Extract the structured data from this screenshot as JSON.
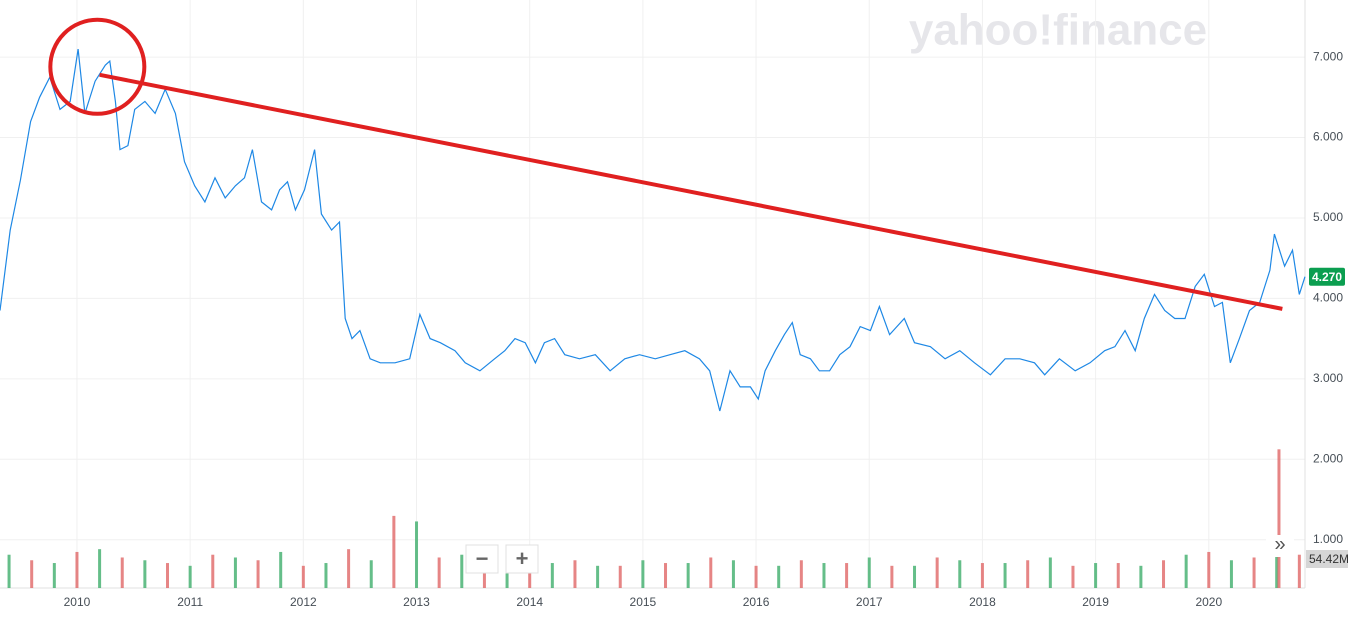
{
  "chart_data": {
    "type": "line",
    "watermark": "yahoo!finance",
    "controls": [
      "−",
      "+",
      "»"
    ],
    "x": [
      2009.32,
      2009.41,
      2009.5,
      2009.59,
      2009.67,
      2009.76,
      2009.85,
      2009.94,
      2010.01,
      2010.07,
      2010.16,
      2010.25,
      2010.29,
      2010.34,
      2010.38,
      2010.45,
      2010.51,
      2010.6,
      2010.69,
      2010.78,
      2010.87,
      2010.95,
      2011.04,
      2011.13,
      2011.22,
      2011.31,
      2011.4,
      2011.48,
      2011.55,
      2011.63,
      2011.72,
      2011.79,
      2011.86,
      2011.93,
      2012.01,
      2012.1,
      2012.16,
      2012.25,
      2012.32,
      2012.37,
      2012.43,
      2012.5,
      2012.59,
      2012.68,
      2012.81,
      2012.94,
      2013.03,
      2013.12,
      2013.21,
      2013.34,
      2013.43,
      2013.56,
      2013.69,
      2013.78,
      2013.87,
      2013.96,
      2014.05,
      2014.13,
      2014.22,
      2014.31,
      2014.44,
      2014.58,
      2014.71,
      2014.84,
      2014.97,
      2015.11,
      2015.24,
      2015.37,
      2015.5,
      2015.59,
      2015.68,
      2015.77,
      2015.86,
      2015.95,
      2016.02,
      2016.08,
      2016.17,
      2016.25,
      2016.32,
      2016.39,
      2016.48,
      2016.56,
      2016.65,
      2016.74,
      2016.83,
      2016.92,
      2017.01,
      2017.09,
      2017.18,
      2017.31,
      2017.4,
      2017.54,
      2017.67,
      2017.8,
      2017.93,
      2018.07,
      2018.2,
      2018.33,
      2018.46,
      2018.55,
      2018.68,
      2018.82,
      2018.95,
      2019.08,
      2019.17,
      2019.26,
      2019.35,
      2019.43,
      2019.52,
      2019.61,
      2019.7,
      2019.79,
      2019.88,
      2019.96,
      2020.05,
      2020.12,
      2020.19,
      2020.27,
      2020.36,
      2020.45,
      2020.54,
      2020.58,
      2020.67,
      2020.74,
      2020.8,
      2020.85
    ],
    "series": [
      {
        "color": "#1e88e5",
        "values": [
          3.85,
          4.85,
          5.47,
          6.2,
          6.5,
          6.75,
          6.35,
          6.45,
          7.1,
          6.3,
          6.7,
          6.9,
          6.95,
          6.45,
          5.85,
          5.9,
          6.35,
          6.45,
          6.3,
          6.6,
          6.3,
          5.7,
          5.4,
          5.2,
          5.5,
          5.25,
          5.4,
          5.5,
          5.85,
          5.2,
          5.1,
          5.35,
          5.45,
          5.1,
          5.35,
          5.85,
          5.05,
          4.85,
          4.95,
          3.75,
          3.5,
          3.6,
          3.25,
          3.2,
          3.2,
          3.25,
          3.8,
          3.5,
          3.45,
          3.35,
          3.2,
          3.1,
          3.25,
          3.35,
          3.5,
          3.45,
          3.2,
          3.45,
          3.5,
          3.3,
          3.25,
          3.3,
          3.1,
          3.25,
          3.3,
          3.25,
          3.3,
          3.35,
          3.25,
          3.1,
          2.6,
          3.1,
          2.9,
          2.9,
          2.75,
          3.1,
          3.35,
          3.55,
          3.7,
          3.3,
          3.25,
          3.1,
          3.1,
          3.3,
          3.4,
          3.65,
          3.6,
          3.9,
          3.55,
          3.75,
          3.45,
          3.4,
          3.25,
          3.35,
          3.2,
          3.05,
          3.25,
          3.25,
          3.2,
          3.05,
          3.25,
          3.1,
          3.2,
          3.35,
          3.4,
          3.6,
          3.35,
          3.75,
          4.05,
          3.85,
          3.75,
          3.75,
          4.15,
          4.3,
          3.9,
          3.95,
          3.2,
          3.5,
          3.85,
          3.95,
          4.35,
          4.8,
          4.4,
          4.6,
          4.05,
          4.27
        ]
      }
    ],
    "last_price": {
      "value": 4.27,
      "label": "4.270"
    },
    "last_volume_label": "54.42M",
    "volume": [
      {
        "color": "#3fae6b",
        "x": [
          2009.4,
          2009.8,
          2010.2,
          2010.6,
          2011.0,
          2011.4,
          2011.8,
          2012.2,
          2012.6,
          2013.0,
          2013.4,
          2013.8,
          2014.2,
          2014.6,
          2015.0,
          2015.4,
          2015.8,
          2016.2,
          2016.6,
          2017.0,
          2017.4,
          2017.8,
          2018.2,
          2018.6,
          2019.0,
          2019.4,
          2019.8,
          2020.2,
          2020.6
        ],
        "values": [
          60,
          45,
          70,
          50,
          40,
          55,
          65,
          45,
          50,
          120,
          60,
          55,
          45,
          40,
          50,
          45,
          50,
          40,
          45,
          55,
          40,
          50,
          45,
          55,
          45,
          40,
          60,
          50,
          70
        ]
      },
      {
        "color": "#e06666",
        "x": [
          2009.6,
          2010.0,
          2010.4,
          2010.8,
          2011.2,
          2011.6,
          2012.0,
          2012.4,
          2012.8,
          2013.2,
          2013.6,
          2014.0,
          2014.4,
          2014.8,
          2015.2,
          2015.6,
          2016.0,
          2016.4,
          2016.8,
          2017.2,
          2017.6,
          2018.0,
          2018.4,
          2018.8,
          2019.2,
          2019.6,
          2020.0,
          2020.4,
          2020.62,
          2020.8
        ],
        "values": [
          50,
          65,
          55,
          45,
          60,
          50,
          40,
          70,
          130,
          55,
          50,
          45,
          50,
          40,
          45,
          55,
          40,
          50,
          45,
          40,
          55,
          45,
          50,
          40,
          45,
          50,
          65,
          55,
          250,
          60
        ]
      }
    ],
    "y2lim": [
      0,
      1060
    ],
    "xlim": [
      2009.32,
      2020.85
    ],
    "xticks": [
      2010,
      2011,
      2012,
      2013,
      2014,
      2015,
      2016,
      2017,
      2018,
      2019,
      2020
    ],
    "ylim": [
      0.4,
      7.71
    ],
    "yticks": [
      {
        "value": 1,
        "label": "1.000"
      },
      {
        "value": 2,
        "label": "2.000"
      },
      {
        "value": 3,
        "label": "3.000"
      },
      {
        "value": 4,
        "label": "4.000"
      },
      {
        "value": 5,
        "label": "5.000"
      },
      {
        "value": 6,
        "label": "6.000"
      },
      {
        "value": 7,
        "label": "7.000"
      }
    ],
    "grid": true,
    "annotation_line": {
      "color": "#e02020",
      "x": [
        2010.2,
        2020.65
      ],
      "values": [
        6.78,
        3.87
      ]
    },
    "annotation_circle": {
      "color": "#e02020",
      "x": 2010.18,
      "value": 6.88
    }
  }
}
